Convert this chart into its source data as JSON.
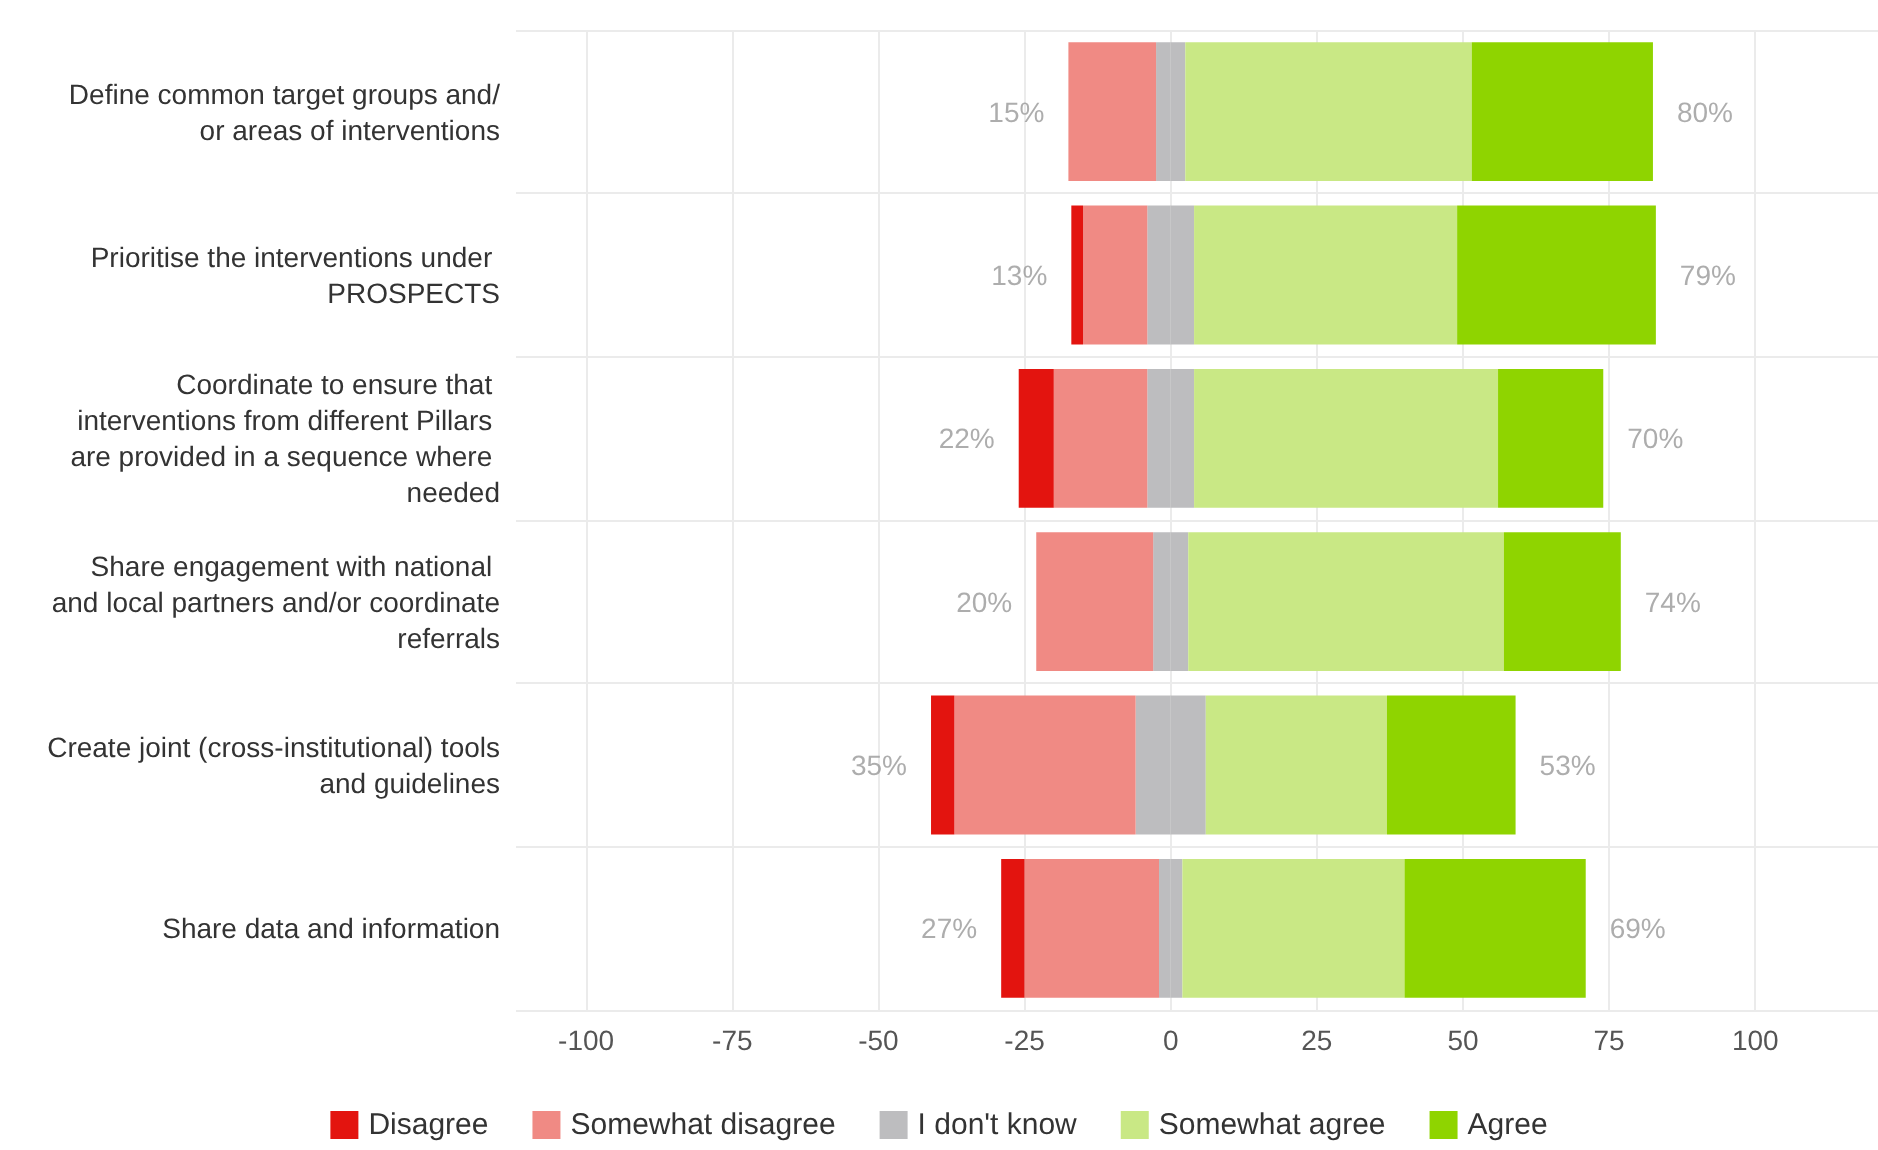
{
  "chart_data": {
    "type": "bar",
    "orientation": "horizontal",
    "stacked": true,
    "categories": [
      "Define common target groups and/or areas of interventions",
      "Prioritise the interventions under PROSPECTS",
      "Coordinate to ensure that interventions from different Pillars are provided in a sequence where needed",
      "Share engagement with national and local partners and/or coordinate referrals",
      "Create joint (cross-institutional) tools and guidelines",
      "Share data and information"
    ],
    "series": [
      {
        "color": "#bdbdbf",
        "values": [
          -2.5,
          -4,
          -4,
          -3,
          -6,
          -2
        ]
      },
      {
        "name": "Somewhat disagree",
        "color": "#f08a84",
        "values": [
          -15,
          -11,
          -16,
          -20,
          -31,
          -23
        ]
      },
      {
        "name": "Disagree",
        "color": "#e3140f",
        "values": [
          0,
          -2,
          -6,
          0,
          -4,
          -4
        ]
      },
      {
        "name": "I don't know",
        "color": "#bdbdbf",
        "values": [
          2.5,
          4,
          4,
          3,
          6,
          2
        ]
      },
      {
        "name": "Somewhat agree",
        "color": "#c9e885",
        "values": [
          49,
          45,
          52,
          54,
          31,
          38
        ]
      },
      {
        "name": "Agree",
        "color": "#8fd400",
        "values": [
          31,
          34,
          18,
          20,
          22,
          31
        ]
      }
    ],
    "xlim": [
      -112,
      121
    ],
    "xticks": [
      -100,
      -75,
      -50,
      -25,
      0,
      25,
      50,
      75,
      100
    ],
    "annotations": [
      {
        "text": "15%",
        "x": -17.5,
        "y": "Define common target groups and/or areas of interventions"
      },
      {
        "text": "80%",
        "x": 82.5,
        "y": "Define common target groups and/or areas of interventions"
      },
      {
        "text": "13%",
        "x": -17,
        "y": "Prioritise the interventions under PROSPECTS"
      },
      {
        "text": "79%",
        "x": 83,
        "y": "Prioritise the interventions under PROSPECTS"
      },
      {
        "text": "22%",
        "x": -26,
        "y": "Coordinate to ensure that interventions from different Pillars are provided in a sequence where needed"
      },
      {
        "text": "70%",
        "x": 74,
        "y": "Coordinate to ensure that interventions from different Pillars are provided in a sequence where needed"
      },
      {
        "text": "20%",
        "x": -23,
        "y": "Share engagement with national and local partners and/or coordinate referrals"
      },
      {
        "text": "74%",
        "x": 77,
        "y": "Share engagement with national and local partners and/or coordinate referrals"
      },
      {
        "text": "35%",
        "x": -41,
        "y": "Create joint (cross-institutional) tools and guidelines"
      },
      {
        "text": "53%",
        "x": 59,
        "y": "Create joint (cross-institutional) tools and guidelines"
      },
      {
        "text": "27%",
        "x": -29,
        "y": "Share data and information"
      },
      {
        "text": "69%",
        "x": 71,
        "y": "Share data and information"
      }
    ],
    "grid": true,
    "legend": "bottom"
  }
}
